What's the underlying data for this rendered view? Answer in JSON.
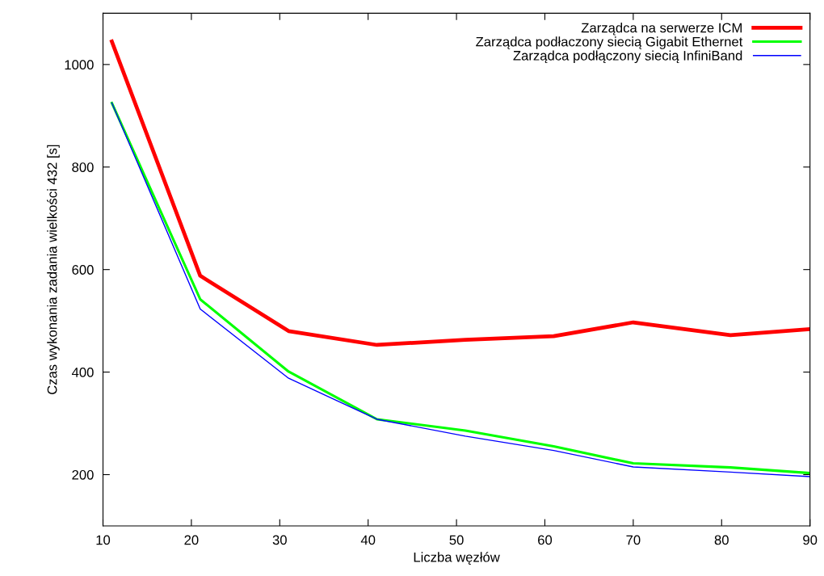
{
  "chart_data": {
    "type": "line",
    "xlabel": "Liczba węzłów",
    "ylabel": "Czas wykonania zadania wielkości 432 [s]",
    "x": [
      11,
      21,
      31,
      41,
      51,
      61,
      70,
      81,
      90
    ],
    "series": [
      {
        "name": "Zarządca na serwerze ICM",
        "color": "#ff0000",
        "values": [
          1045,
          588,
          480,
          453,
          463,
          470,
          497,
          472,
          484
        ]
      },
      {
        "name": "Zarządca podłaczony siecią Gigabit Ethernet",
        "color": "#00ff00",
        "values": [
          925,
          542,
          401,
          308,
          286,
          255,
          222,
          214,
          203
        ]
      },
      {
        "name": "Zarządca podłączony siecią InfiniBand",
        "color": "#0000ff",
        "values": [
          925,
          523,
          388,
          308,
          275,
          247,
          215,
          205,
          196
        ]
      }
    ],
    "xlim": [
      10,
      90
    ],
    "xticks": [
      10,
      20,
      30,
      40,
      50,
      60,
      70,
      80,
      90
    ],
    "ylim": [
      100,
      1100
    ],
    "yticks": [
      200,
      400,
      600,
      800,
      1000
    ],
    "grid": false,
    "legend": "top right",
    "marker": "none",
    "line_style": "solid"
  }
}
